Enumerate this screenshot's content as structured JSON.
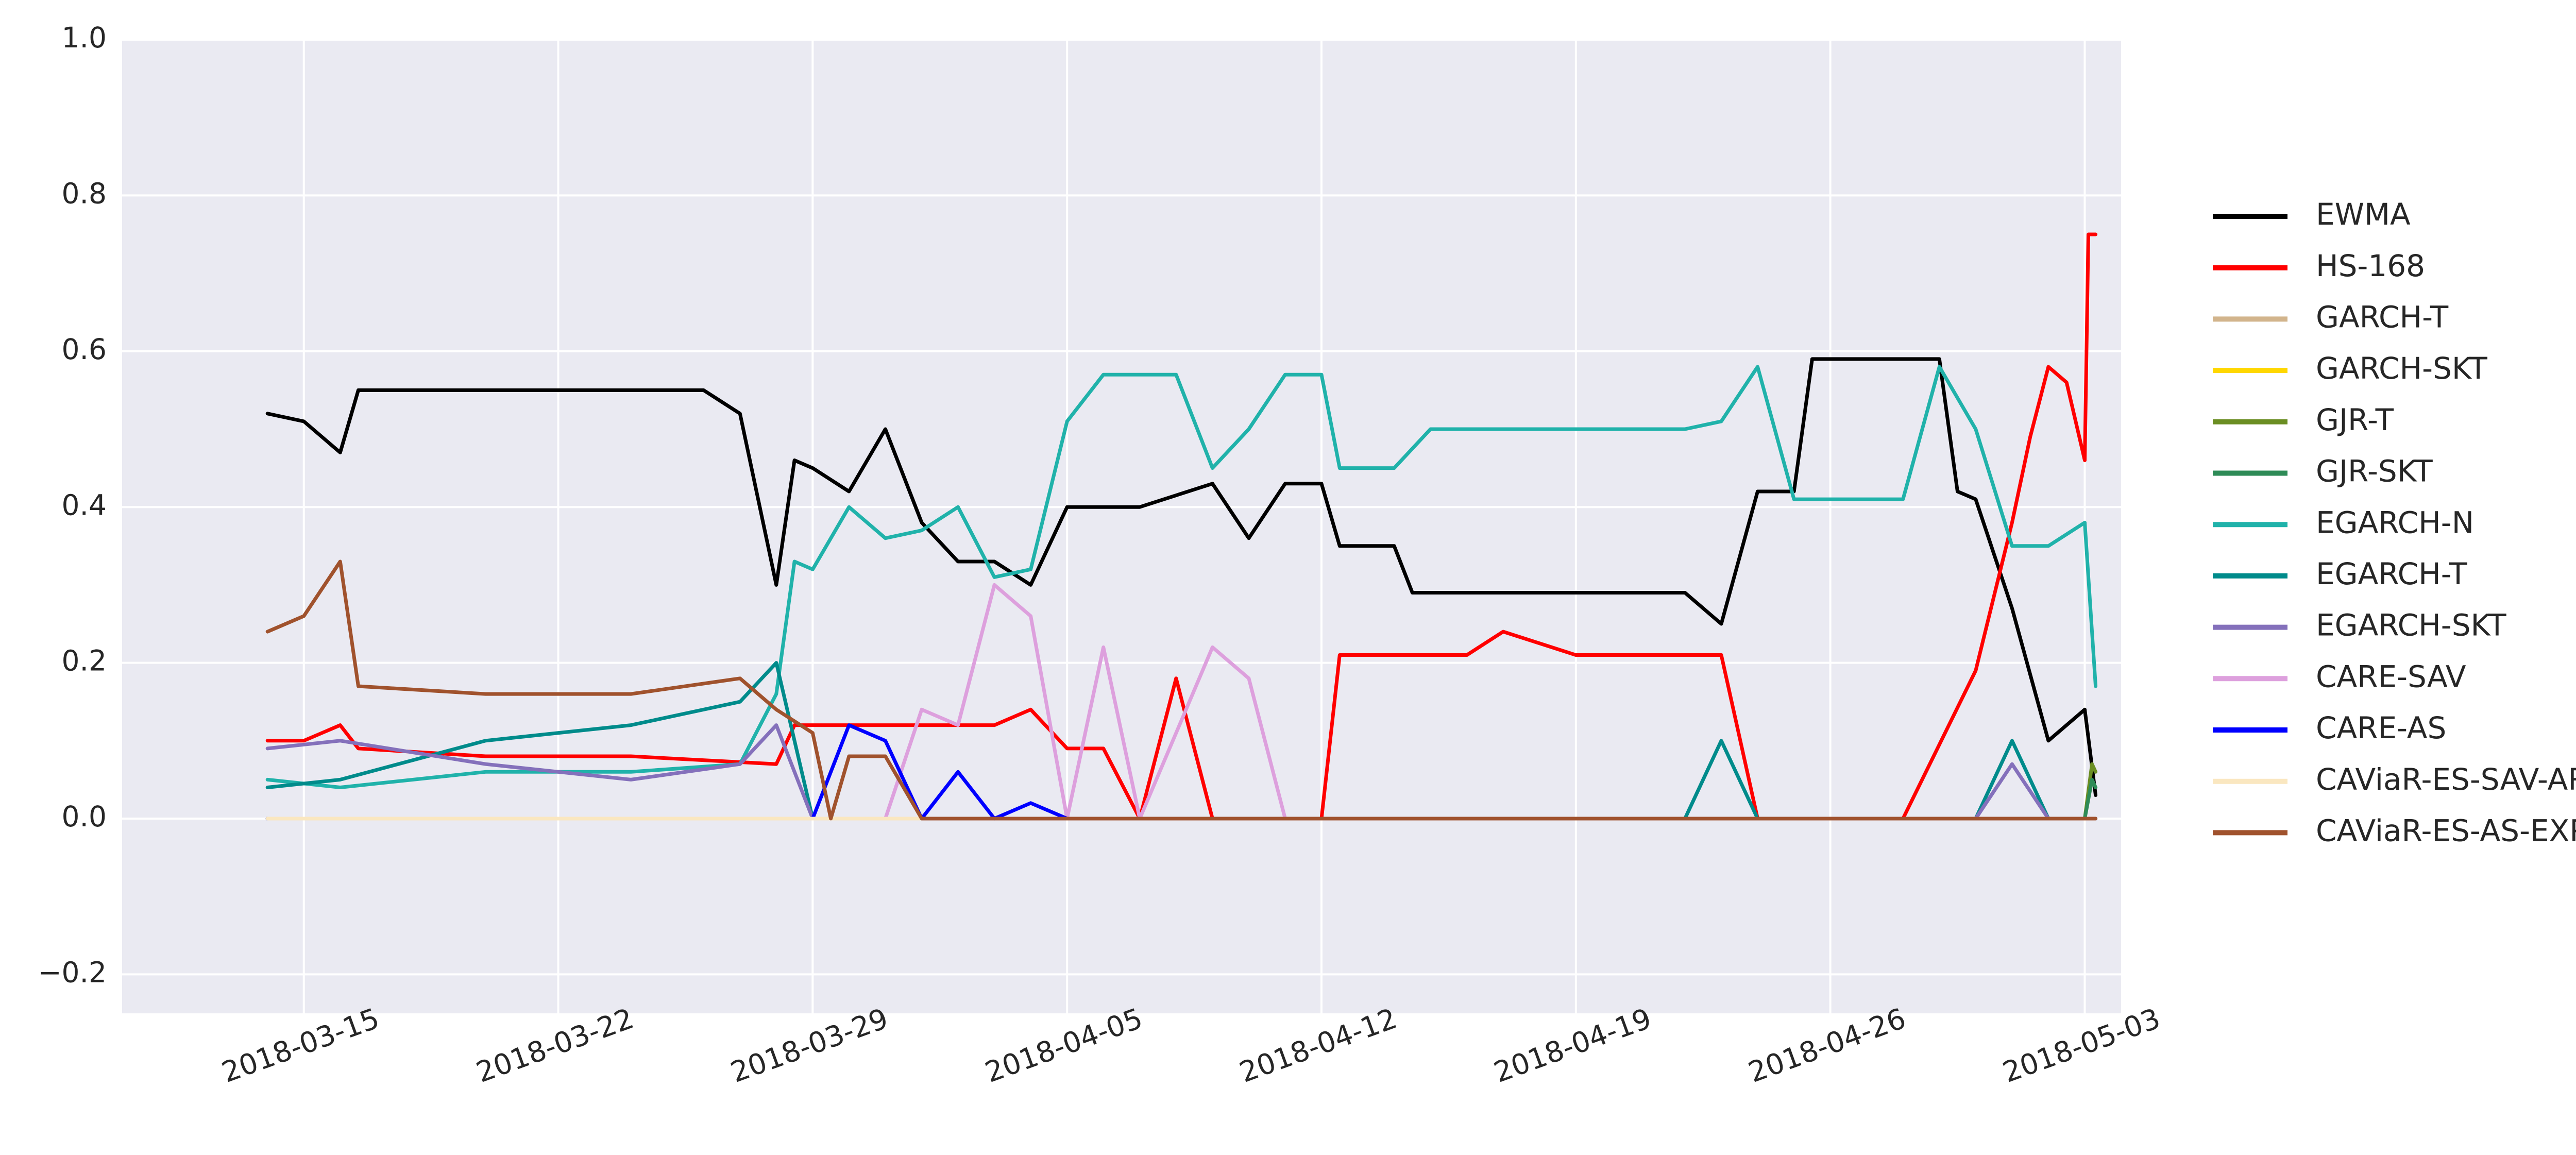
{
  "chart_data": {
    "type": "line",
    "title": "",
    "xlabel": "",
    "ylabel": "",
    "x_type": "date",
    "xlim": [
      "2018-03-10",
      "2018-05-04"
    ],
    "ylim": [
      -0.25,
      1.0
    ],
    "grid": true,
    "legend_position": "right",
    "x_ticks": [
      "2018-03-15",
      "2018-03-22",
      "2018-03-29",
      "2018-04-05",
      "2018-04-12",
      "2018-04-19",
      "2018-04-26",
      "2018-05-03"
    ],
    "y_ticks": [
      -0.2,
      0.0,
      0.2,
      0.4,
      0.6,
      0.8,
      1.0
    ],
    "y_tick_labels": [
      "−0.2",
      "0.0",
      "0.2",
      "0.4",
      "0.6",
      "0.8",
      "1.0"
    ],
    "series": [
      {
        "name": "EWMA",
        "color": "#000000",
        "points": [
          [
            "2018-03-14",
            0.52
          ],
          [
            "2018-03-15",
            0.51
          ],
          [
            "2018-03-16",
            0.47
          ],
          [
            "2018-03-16.5",
            0.55
          ],
          [
            "2018-03-20",
            0.55
          ],
          [
            "2018-03-24",
            0.55
          ],
          [
            "2018-03-26",
            0.55
          ],
          [
            "2018-03-27",
            0.52
          ],
          [
            "2018-03-28",
            0.3
          ],
          [
            "2018-03-28.5",
            0.46
          ],
          [
            "2018-03-29",
            0.45
          ],
          [
            "2018-03-30",
            0.42
          ],
          [
            "2018-03-31",
            0.5
          ],
          [
            "2018-04-01",
            0.38
          ],
          [
            "2018-04-02",
            0.33
          ],
          [
            "2018-04-03",
            0.33
          ],
          [
            "2018-04-04",
            0.3
          ],
          [
            "2018-04-05",
            0.4
          ],
          [
            "2018-04-07",
            0.4
          ],
          [
            "2018-04-09",
            0.43
          ],
          [
            "2018-04-10",
            0.36
          ],
          [
            "2018-04-11",
            0.43
          ],
          [
            "2018-04-12",
            0.43
          ],
          [
            "2018-04-12.5",
            0.35
          ],
          [
            "2018-04-14",
            0.35
          ],
          [
            "2018-04-14.5",
            0.29
          ],
          [
            "2018-04-17",
            0.29
          ],
          [
            "2018-04-19",
            0.29
          ],
          [
            "2018-04-22",
            0.29
          ],
          [
            "2018-04-23",
            0.25
          ],
          [
            "2018-04-24",
            0.42
          ],
          [
            "2018-04-25",
            0.42
          ],
          [
            "2018-04-25.5",
            0.59
          ],
          [
            "2018-04-28",
            0.59
          ],
          [
            "2018-04-29",
            0.59
          ],
          [
            "2018-04-29.5",
            0.42
          ],
          [
            "2018-04-30",
            0.41
          ],
          [
            "2018-05-01",
            0.27
          ],
          [
            "2018-05-02",
            0.1
          ],
          [
            "2018-05-03",
            0.14
          ],
          [
            "2018-05-03.3",
            0.03
          ]
        ]
      },
      {
        "name": "HS-168",
        "color": "#ff0000",
        "points": [
          [
            "2018-03-14",
            0.1
          ],
          [
            "2018-03-15",
            0.1
          ],
          [
            "2018-03-16",
            0.12
          ],
          [
            "2018-03-16.5",
            0.09
          ],
          [
            "2018-03-20",
            0.08
          ],
          [
            "2018-03-24",
            0.08
          ],
          [
            "2018-03-28",
            0.07
          ],
          [
            "2018-03-28.5",
            0.12
          ],
          [
            "2018-03-30",
            0.12
          ],
          [
            "2018-04-02",
            0.12
          ],
          [
            "2018-04-03",
            0.12
          ],
          [
            "2018-04-04",
            0.14
          ],
          [
            "2018-04-05",
            0.09
          ],
          [
            "2018-04-06",
            0.09
          ],
          [
            "2018-04-07",
            0.0
          ],
          [
            "2018-04-08",
            0.18
          ],
          [
            "2018-04-09",
            0.0
          ],
          [
            "2018-04-12",
            0.0
          ],
          [
            "2018-04-12.5",
            0.21
          ],
          [
            "2018-04-15",
            0.21
          ],
          [
            "2018-04-16",
            0.21
          ],
          [
            "2018-04-17",
            0.24
          ],
          [
            "2018-04-19",
            0.21
          ],
          [
            "2018-04-22",
            0.21
          ],
          [
            "2018-04-23",
            0.21
          ],
          [
            "2018-04-24",
            0.0
          ],
          [
            "2018-04-28",
            0.0
          ],
          [
            "2018-04-30",
            0.19
          ],
          [
            "2018-05-01",
            0.38
          ],
          [
            "2018-05-01.5",
            0.49
          ],
          [
            "2018-05-02",
            0.58
          ],
          [
            "2018-05-02.5",
            0.56
          ],
          [
            "2018-05-03",
            0.46
          ],
          [
            "2018-05-03.1",
            0.75
          ],
          [
            "2018-05-03.3",
            0.75
          ]
        ]
      },
      {
        "name": "GARCH-T",
        "color": "#d2b48c",
        "points": [
          [
            "2018-03-14",
            0.0
          ],
          [
            "2018-05-03",
            0.0
          ],
          [
            "2018-05-03.3",
            0.0
          ]
        ]
      },
      {
        "name": "GARCH-SKT",
        "color": "#ffd700",
        "points": [
          [
            "2018-03-14",
            0.0
          ],
          [
            "2018-05-03",
            0.0
          ],
          [
            "2018-05-03.3",
            0.0
          ]
        ]
      },
      {
        "name": "GJR-T",
        "color": "#6b8e23",
        "points": [
          [
            "2018-03-14",
            0.0
          ],
          [
            "2018-05-03",
            0.0
          ],
          [
            "2018-05-03.2",
            0.07
          ],
          [
            "2018-05-03.3",
            0.06
          ]
        ]
      },
      {
        "name": "GJR-SKT",
        "color": "#2e8b57",
        "points": [
          [
            "2018-03-14",
            0.0
          ],
          [
            "2018-05-03",
            0.0
          ],
          [
            "2018-05-03.2",
            0.05
          ],
          [
            "2018-05-03.3",
            0.04
          ]
        ]
      },
      {
        "name": "EGARCH-N",
        "color": "#20b2aa",
        "points": [
          [
            "2018-03-14",
            0.05
          ],
          [
            "2018-03-16",
            0.04
          ],
          [
            "2018-03-20",
            0.06
          ],
          [
            "2018-03-24",
            0.06
          ],
          [
            "2018-03-27",
            0.07
          ],
          [
            "2018-03-28",
            0.16
          ],
          [
            "2018-03-28.5",
            0.33
          ],
          [
            "2018-03-29",
            0.32
          ],
          [
            "2018-03-30",
            0.4
          ],
          [
            "2018-03-31",
            0.36
          ],
          [
            "2018-04-01",
            0.37
          ],
          [
            "2018-04-02",
            0.4
          ],
          [
            "2018-04-03",
            0.31
          ],
          [
            "2018-04-04",
            0.32
          ],
          [
            "2018-04-05",
            0.51
          ],
          [
            "2018-04-06",
            0.57
          ],
          [
            "2018-04-08",
            0.57
          ],
          [
            "2018-04-09",
            0.45
          ],
          [
            "2018-04-10",
            0.5
          ],
          [
            "2018-04-11",
            0.57
          ],
          [
            "2018-04-12",
            0.57
          ],
          [
            "2018-04-12.5",
            0.45
          ],
          [
            "2018-04-14",
            0.45
          ],
          [
            "2018-04-15",
            0.5
          ],
          [
            "2018-04-17",
            0.5
          ],
          [
            "2018-04-19",
            0.5
          ],
          [
            "2018-04-22",
            0.5
          ],
          [
            "2018-04-23",
            0.51
          ],
          [
            "2018-04-24",
            0.58
          ],
          [
            "2018-04-25",
            0.41
          ],
          [
            "2018-04-28",
            0.41
          ],
          [
            "2018-04-29",
            0.58
          ],
          [
            "2018-04-30",
            0.5
          ],
          [
            "2018-05-01",
            0.35
          ],
          [
            "2018-05-02",
            0.35
          ],
          [
            "2018-05-03",
            0.38
          ],
          [
            "2018-05-03.3",
            0.17
          ]
        ]
      },
      {
        "name": "EGARCH-T",
        "color": "#008b8b",
        "points": [
          [
            "2018-03-14",
            0.04
          ],
          [
            "2018-03-16",
            0.05
          ],
          [
            "2018-03-20",
            0.1
          ],
          [
            "2018-03-24",
            0.12
          ],
          [
            "2018-03-27",
            0.15
          ],
          [
            "2018-03-28",
            0.2
          ],
          [
            "2018-03-29",
            0.0
          ],
          [
            "2018-04-12",
            0.0
          ],
          [
            "2018-04-15",
            0.0
          ],
          [
            "2018-04-22",
            0.0
          ],
          [
            "2018-04-23",
            0.1
          ],
          [
            "2018-04-24",
            0.0
          ],
          [
            "2018-04-30",
            0.0
          ],
          [
            "2018-05-01",
            0.1
          ],
          [
            "2018-05-02",
            0.0
          ],
          [
            "2018-05-03.3",
            0.0
          ]
        ]
      },
      {
        "name": "EGARCH-SKT",
        "color": "#8470bb",
        "points": [
          [
            "2018-03-14",
            0.09
          ],
          [
            "2018-03-16",
            0.1
          ],
          [
            "2018-03-20",
            0.07
          ],
          [
            "2018-03-24",
            0.05
          ],
          [
            "2018-03-27",
            0.07
          ],
          [
            "2018-03-28",
            0.12
          ],
          [
            "2018-03-29",
            0.0
          ],
          [
            "2018-04-30",
            0.0
          ],
          [
            "2018-05-01",
            0.07
          ],
          [
            "2018-05-02",
            0.0
          ],
          [
            "2018-05-03.3",
            0.0
          ]
        ]
      },
      {
        "name": "CARE-SAV",
        "color": "#dda0dd",
        "points": [
          [
            "2018-03-14",
            0.0
          ],
          [
            "2018-03-31",
            0.0
          ],
          [
            "2018-04-01",
            0.14
          ],
          [
            "2018-04-02",
            0.12
          ],
          [
            "2018-04-03",
            0.3
          ],
          [
            "2018-04-04",
            0.26
          ],
          [
            "2018-04-05",
            0.0
          ],
          [
            "2018-04-06",
            0.22
          ],
          [
            "2018-04-07",
            0.0
          ],
          [
            "2018-04-09",
            0.22
          ],
          [
            "2018-04-10",
            0.18
          ],
          [
            "2018-04-11",
            0.0
          ],
          [
            "2018-05-03.3",
            0.0
          ]
        ]
      },
      {
        "name": "CARE-AS",
        "color": "#0000ff",
        "points": [
          [
            "2018-03-14",
            0.0
          ],
          [
            "2018-03-29",
            0.0
          ],
          [
            "2018-03-30",
            0.12
          ],
          [
            "2018-03-31",
            0.1
          ],
          [
            "2018-04-01",
            0.0
          ],
          [
            "2018-04-02",
            0.06
          ],
          [
            "2018-04-03",
            0.0
          ],
          [
            "2018-04-04",
            0.02
          ],
          [
            "2018-04-05",
            0.0
          ],
          [
            "2018-05-03.3",
            0.0
          ]
        ]
      },
      {
        "name": "CAViaR-ES-SAV-AR",
        "color": "#fae7c0",
        "points": [
          [
            "2018-03-14",
            0.0
          ],
          [
            "2018-05-03.3",
            0.0
          ]
        ]
      },
      {
        "name": "CAViaR-ES-AS-EXP",
        "color": "#a0522d",
        "points": [
          [
            "2018-03-14",
            0.24
          ],
          [
            "2018-03-15",
            0.26
          ],
          [
            "2018-03-16",
            0.33
          ],
          [
            "2018-03-16.5",
            0.17
          ],
          [
            "2018-03-20",
            0.16
          ],
          [
            "2018-03-24",
            0.16
          ],
          [
            "2018-03-27",
            0.18
          ],
          [
            "2018-03-28",
            0.14
          ],
          [
            "2018-03-29",
            0.11
          ],
          [
            "2018-03-29.5",
            0.0
          ],
          [
            "2018-03-30",
            0.08
          ],
          [
            "2018-03-31",
            0.08
          ],
          [
            "2018-04-01",
            0.0
          ],
          [
            "2018-05-03.3",
            0.0
          ]
        ]
      }
    ]
  }
}
